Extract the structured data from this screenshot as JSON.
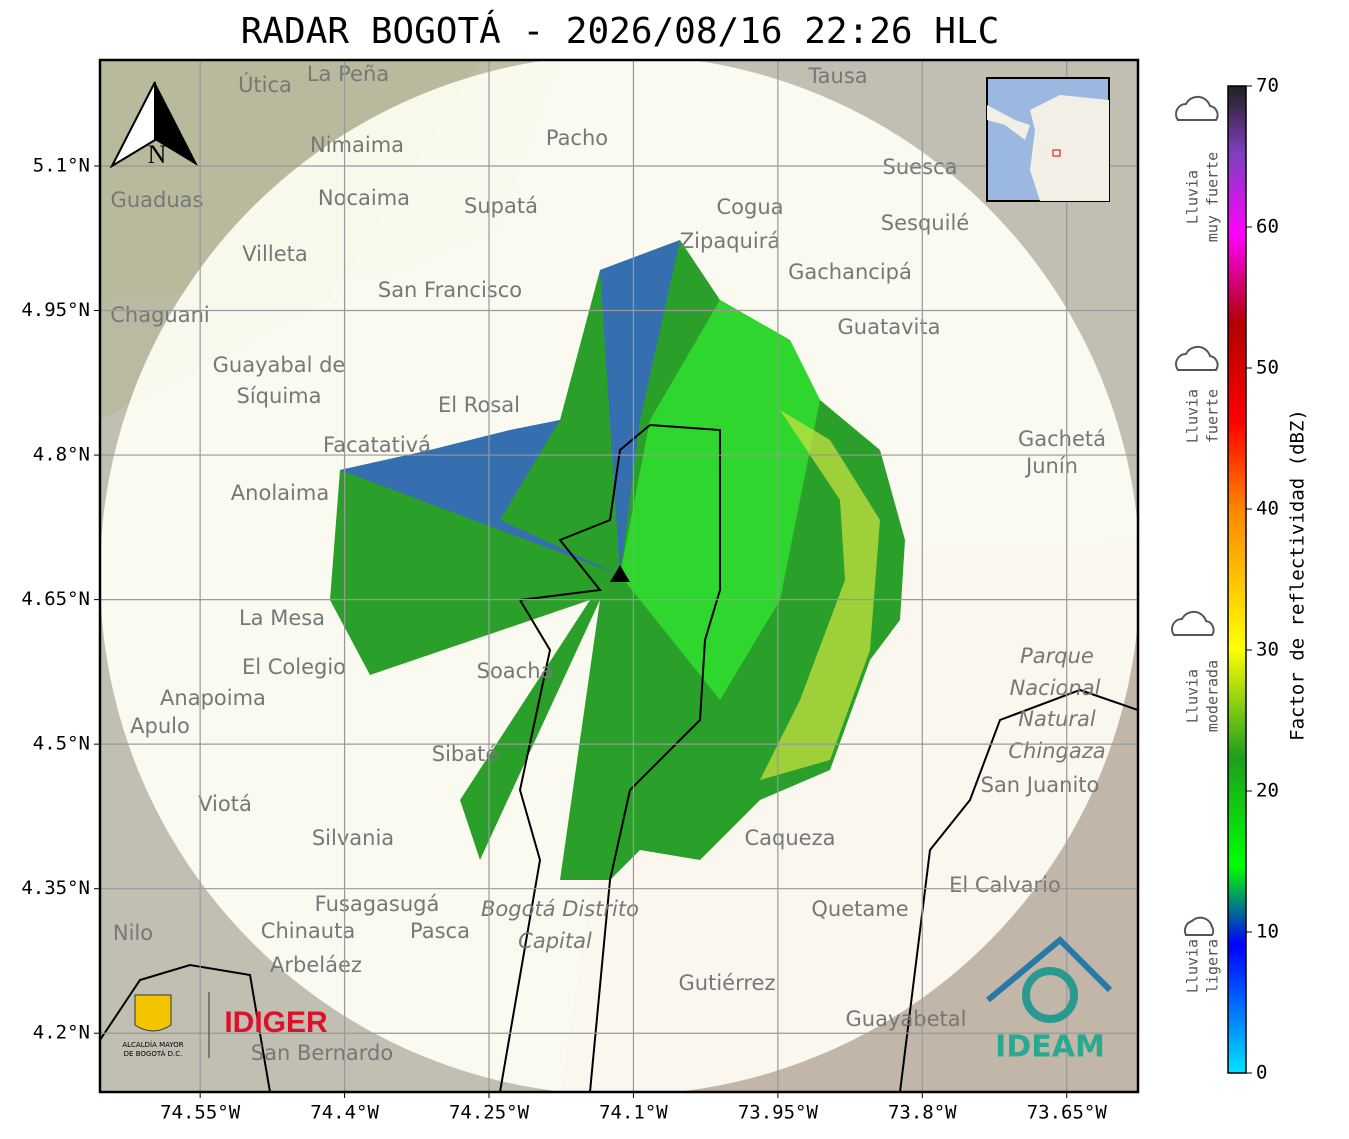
{
  "title": "RADAR BOGOTÁ - 2026/08/16 22:26 HLC",
  "map": {
    "xlim": [
      -74.654,
      -73.576
    ],
    "ylim": [
      4.139,
      5.21
    ],
    "xticks": [
      {
        "value": -74.55,
        "label": "74.55°W"
      },
      {
        "value": -74.4,
        "label": "74.4°W"
      },
      {
        "value": -74.25,
        "label": "74.25°W"
      },
      {
        "value": -74.1,
        "label": "74.1°W"
      },
      {
        "value": -73.95,
        "label": "73.95°W"
      },
      {
        "value": -73.8,
        "label": "73.8°W"
      },
      {
        "value": -73.65,
        "label": "73.65°W"
      }
    ],
    "yticks": [
      {
        "value": 5.1,
        "label": "5.1°N"
      },
      {
        "value": 4.95,
        "label": "4.95°N"
      },
      {
        "value": 4.8,
        "label": "4.8°N"
      },
      {
        "value": 4.65,
        "label": "4.65°N"
      },
      {
        "value": 4.5,
        "label": "4.5°N"
      },
      {
        "value": 4.35,
        "label": "4.35°N"
      },
      {
        "value": 4.2,
        "label": "4.2°N"
      }
    ],
    "north": "N",
    "places": [
      "La Peña",
      "Útica",
      "Tausa",
      "Pacho",
      "Nimaima",
      "Suesca",
      "Guaduas",
      "Nocaima",
      "Supatá",
      "Cogua",
      "Sesquilé",
      "Zipaquirá",
      "Villeta",
      "Gachancipá",
      "San Francisco",
      "Chaguani",
      "Guatavita",
      "Guayabal de",
      "Síquima",
      "El Rosal",
      "Gachetá",
      "Junín",
      "Facatativá",
      "Anolaima",
      "La Mesa",
      "El Colegio",
      "Soacha",
      "Anapoima",
      "Apulo",
      "Parque",
      "Nacional",
      "Natural",
      "Chingaza",
      "San Juanito",
      "Viotá",
      "Sibaté",
      "Silvania",
      "Caqueza",
      "El Calvario",
      "Quetame",
      "Fusagasugá",
      "Bogotá Distrito",
      "Capital",
      "Chinauta",
      "Pasca",
      "Nilo",
      "Arbeláez",
      "Gutiérrez",
      "Guayabetal",
      "San Bernardo"
    ]
  },
  "colorbar": {
    "label": "Factor de reflectividad (dBZ)",
    "ylim": [
      0,
      70
    ],
    "yticks": [
      0,
      10,
      20,
      30,
      40,
      50,
      60,
      70
    ],
    "categories": [
      [
        "Lluvia",
        "muy fuerte"
      ],
      [
        "Lluvia",
        "fuerte"
      ],
      [
        "Lluvia",
        "moderada"
      ],
      [
        "Lluvia",
        "ligera"
      ]
    ]
  },
  "logos": {
    "alcaldia": [
      "ALCALDÍA MAYOR",
      "DE BOGOTÁ D.C."
    ],
    "idiger": "IDIGER",
    "ideam": "IDEAM"
  }
}
